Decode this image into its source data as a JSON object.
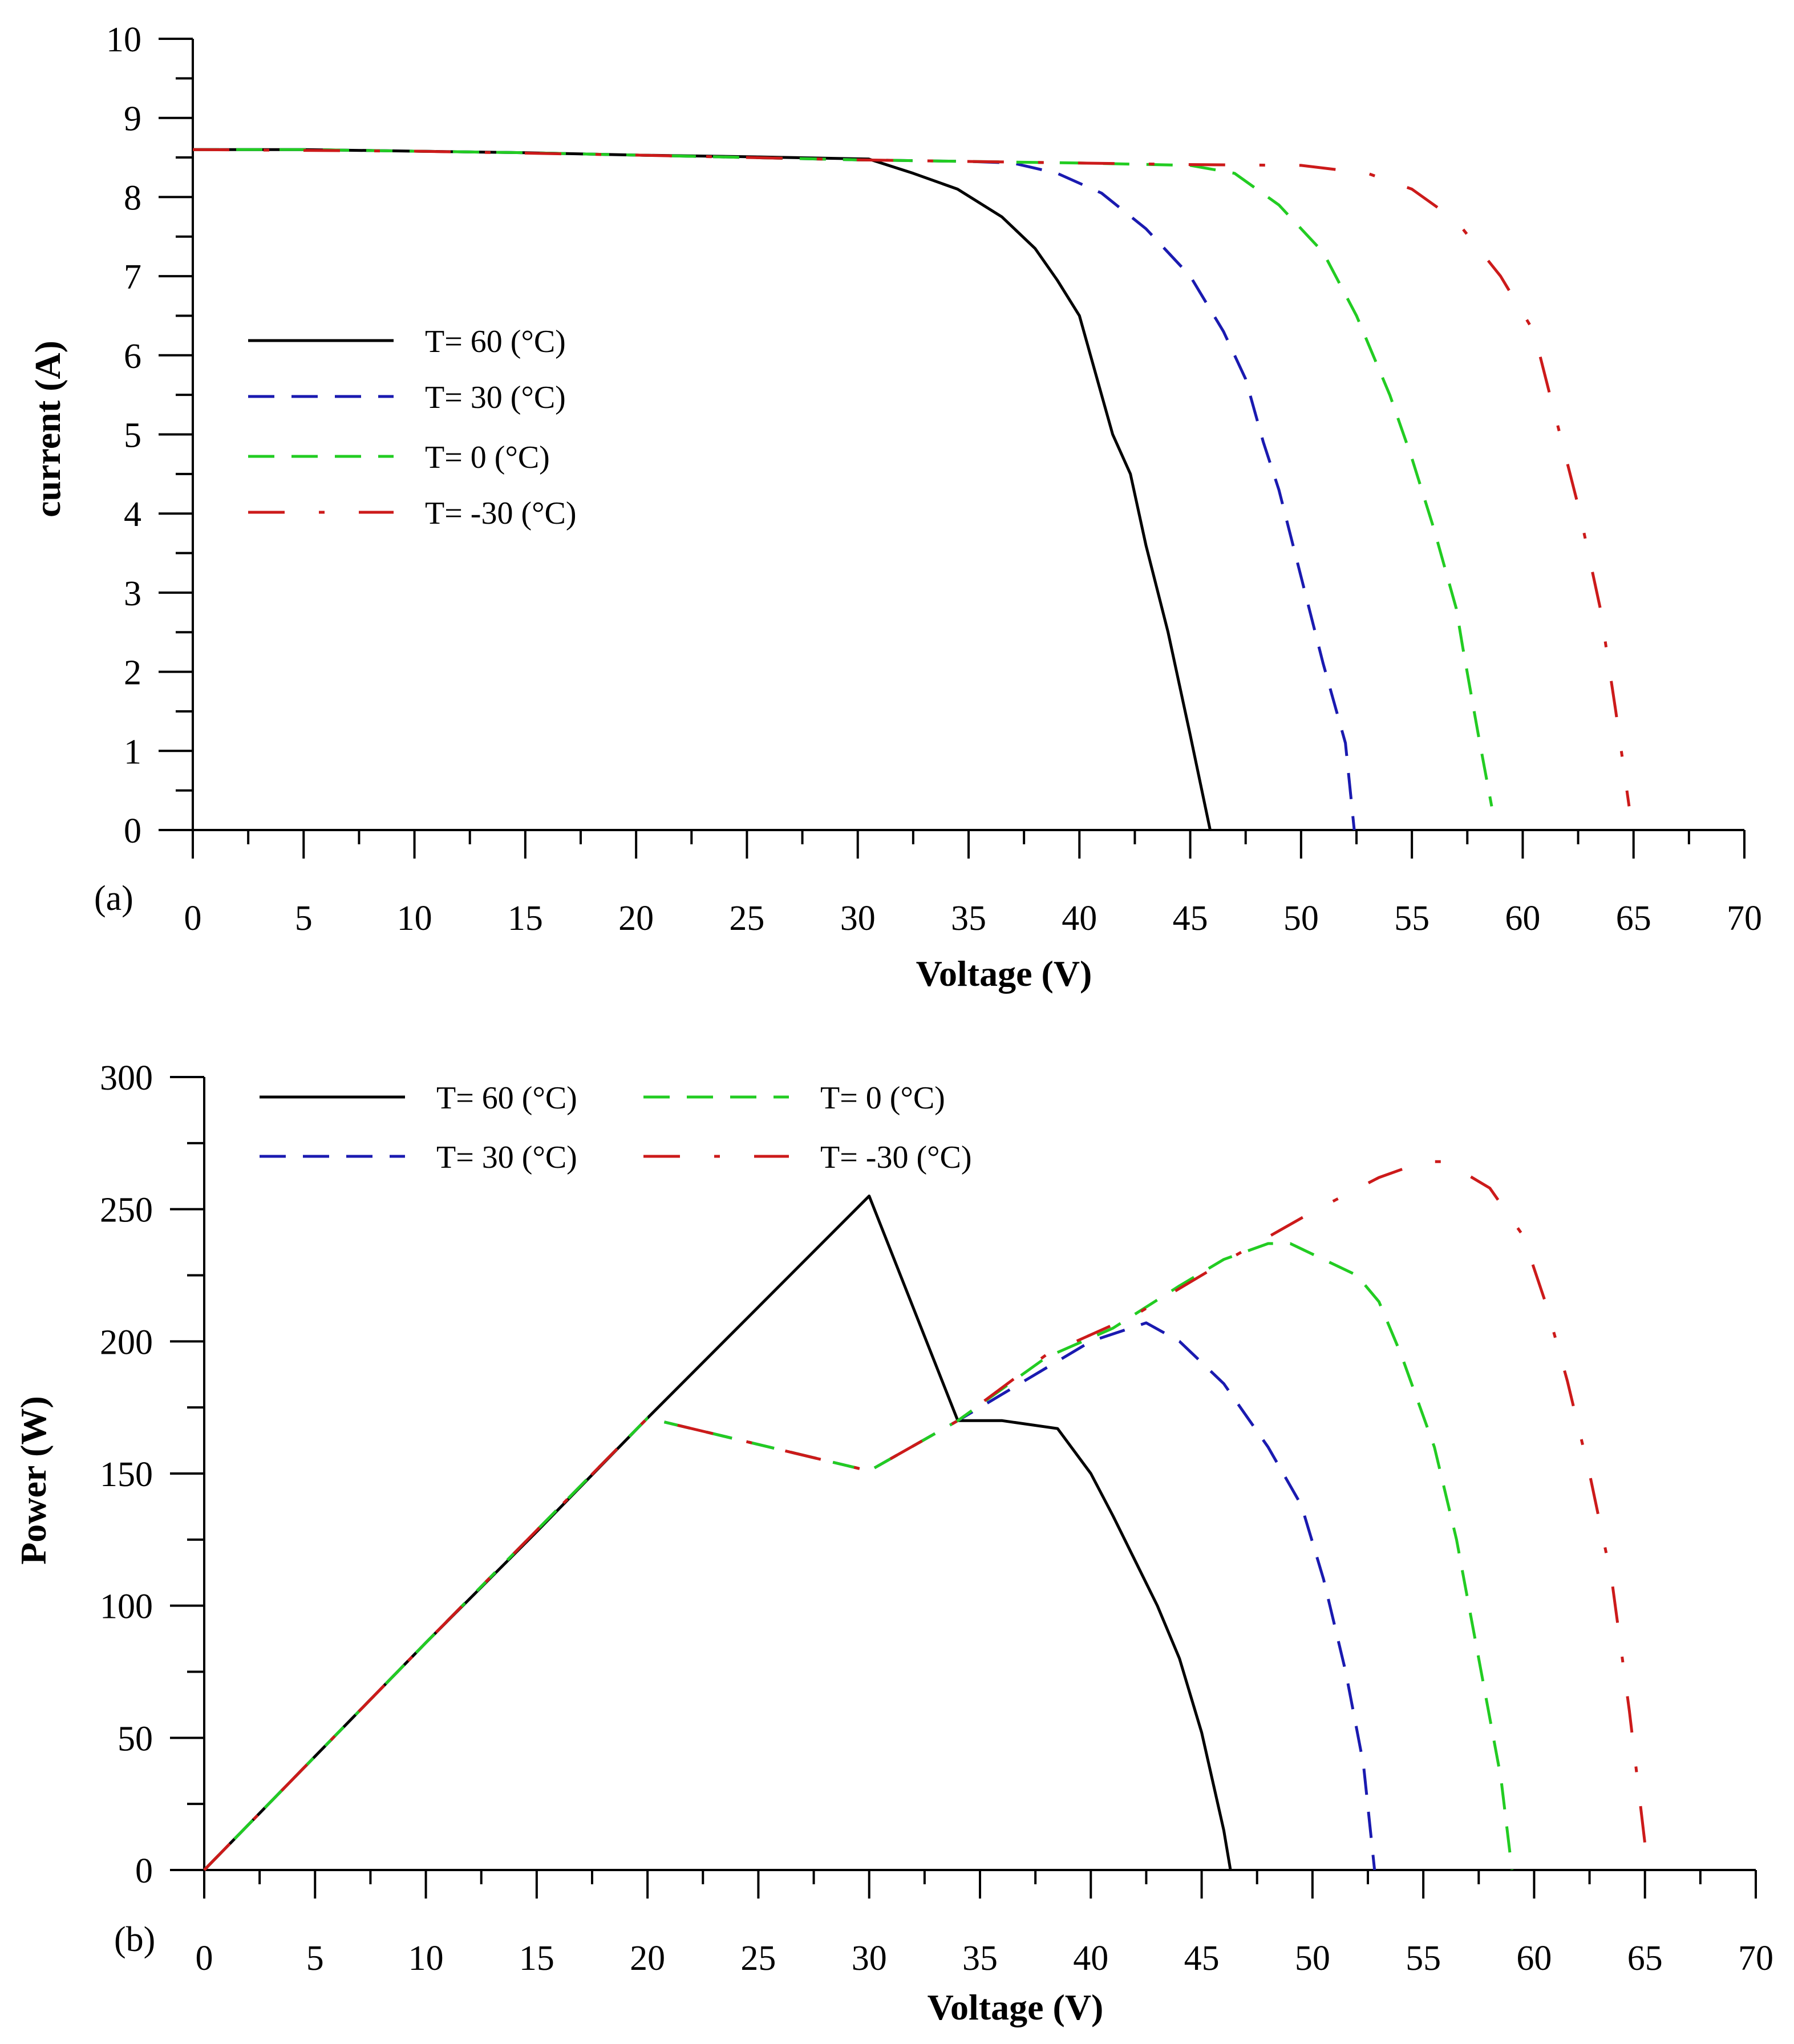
{
  "chart_data": [
    {
      "type": "line",
      "panel_label": "(a)",
      "xlabel": "Voltage (V)",
      "ylabel": "current (A)",
      "xlim": [
        0,
        70
      ],
      "ylim": [
        0,
        10
      ],
      "xticks": [
        0,
        5,
        10,
        15,
        20,
        25,
        30,
        35,
        40,
        45,
        50,
        55,
        60,
        65,
        70
      ],
      "yticks": [
        0,
        1,
        2,
        3,
        4,
        5,
        6,
        7,
        8,
        9,
        10
      ],
      "grid": false,
      "legend_position": "center-left",
      "series": [
        {
          "name": "T= 60 (°C)",
          "color": "#000000",
          "dash": "solid",
          "points": [
            [
              0,
              8.6
            ],
            [
              5,
              8.6
            ],
            [
              10,
              8.58
            ],
            [
              15,
              8.56
            ],
            [
              20,
              8.53
            ],
            [
              25,
              8.51
            ],
            [
              30.5,
              8.48
            ],
            [
              32.5,
              8.3
            ],
            [
              34.5,
              8.1
            ],
            [
              36.5,
              7.75
            ],
            [
              38,
              7.35
            ],
            [
              39,
              6.95
            ],
            [
              40,
              6.5
            ],
            [
              41,
              5.5
            ],
            [
              41.5,
              5.0
            ],
            [
              42.3,
              4.5
            ],
            [
              43,
              3.6
            ],
            [
              44,
              2.5
            ],
            [
              45,
              1.2
            ],
            [
              45.9,
              0
            ]
          ]
        },
        {
          "name": "T= 30 (°C)",
          "color": "#1a1ab0",
          "dash": "long-dash",
          "points": [
            [
              0,
              8.6
            ],
            [
              5,
              8.6
            ],
            [
              10,
              8.58
            ],
            [
              15,
              8.56
            ],
            [
              20,
              8.53
            ],
            [
              25,
              8.5
            ],
            [
              30,
              8.47
            ],
            [
              35,
              8.45
            ],
            [
              37,
              8.43
            ],
            [
              39,
              8.3
            ],
            [
              41,
              8.05
            ],
            [
              43,
              7.6
            ],
            [
              45,
              7.0
            ],
            [
              46.5,
              6.3
            ],
            [
              47.5,
              5.7
            ],
            [
              48.3,
              4.9
            ],
            [
              49,
              4.3
            ],
            [
              50,
              3.2
            ],
            [
              51,
              2.1
            ],
            [
              52,
              1.1
            ],
            [
              52.4,
              0
            ]
          ]
        },
        {
          "name": "T= 0 (°C)",
          "color": "#22cc22",
          "dash": "long-dash",
          "points": [
            [
              0,
              8.6
            ],
            [
              5,
              8.6
            ],
            [
              10,
              8.58
            ],
            [
              15,
              8.56
            ],
            [
              20,
              8.53
            ],
            [
              25,
              8.5
            ],
            [
              30,
              8.47
            ],
            [
              35,
              8.45
            ],
            [
              40,
              8.43
            ],
            [
              45,
              8.4
            ],
            [
              47,
              8.3
            ],
            [
              49,
              7.9
            ],
            [
              51,
              7.3
            ],
            [
              52.5,
              6.5
            ],
            [
              54,
              5.5
            ],
            [
              55,
              4.7
            ],
            [
              56,
              3.8
            ],
            [
              57,
              2.8
            ],
            [
              57.3,
              2.3
            ],
            [
              58,
              1.2
            ],
            [
              58.6,
              0.3
            ]
          ]
        },
        {
          "name": "T= -30 (°C)",
          "color": "#cc1a1a",
          "dash": "dash-dot",
          "points": [
            [
              0,
              8.6
            ],
            [
              10,
              8.58
            ],
            [
              20,
              8.53
            ],
            [
              30,
              8.47
            ],
            [
              40,
              8.43
            ],
            [
              45,
              8.41
            ],
            [
              50,
              8.4
            ],
            [
              53,
              8.3
            ],
            [
              55,
              8.1
            ],
            [
              57,
              7.7
            ],
            [
              59,
              7.0
            ],
            [
              60.5,
              6.3
            ],
            [
              61.5,
              5.2
            ],
            [
              62.5,
              4.1
            ],
            [
              63.5,
              2.8
            ],
            [
              64.2,
              1.5
            ],
            [
              64.8,
              0.3
            ]
          ]
        }
      ]
    },
    {
      "type": "line",
      "panel_label": "(b)",
      "xlabel": "Voltage (V)",
      "ylabel": "Power (W)",
      "xlim": [
        0,
        70
      ],
      "ylim": [
        0,
        300
      ],
      "xticks": [
        0,
        5,
        10,
        15,
        20,
        25,
        30,
        35,
        40,
        45,
        50,
        55,
        60,
        65,
        70
      ],
      "yticks": [
        0,
        50,
        100,
        150,
        200,
        250,
        300
      ],
      "grid": false,
      "legend_position": "top-left",
      "series": [
        {
          "name": "T= 60 (°C)",
          "color": "#000000",
          "dash": "solid",
          "points": [
            [
              0,
              0
            ],
            [
              5,
              43
            ],
            [
              10,
              86
            ],
            [
              15,
              128
            ],
            [
              20,
              171
            ],
            [
              25,
              213
            ],
            [
              30,
              255
            ],
            [
              34,
              170
            ],
            [
              36,
              170
            ],
            [
              38.5,
              167
            ],
            [
              40,
              150
            ],
            [
              41,
              134
            ],
            [
              42,
              117
            ],
            [
              43,
              100
            ],
            [
              44,
              80
            ],
            [
              45,
              52
            ],
            [
              46,
              15
            ],
            [
              46.3,
              0
            ]
          ]
        },
        {
          "name": "T= 30 (°C)",
          "color": "#1a1ab0",
          "dash": "long-dash",
          "points": [
            [
              0,
              0
            ],
            [
              10,
              86
            ],
            [
              20,
              171
            ],
            [
              30,
              151
            ],
            [
              34,
              170
            ],
            [
              37,
              185
            ],
            [
              40,
              200
            ],
            [
              42.5,
              207
            ],
            [
              44,
              200
            ],
            [
              46,
              184
            ],
            [
              48,
              160
            ],
            [
              49.5,
              138
            ],
            [
              50.5,
              110
            ],
            [
              51.5,
              75
            ],
            [
              52.3,
              40
            ],
            [
              52.8,
              0
            ]
          ]
        },
        {
          "name": "T= 0 (°C)",
          "color": "#22cc22",
          "dash": "long-dash",
          "points": [
            [
              0,
              0
            ],
            [
              10,
              86
            ],
            [
              20,
              171
            ],
            [
              30,
              151
            ],
            [
              34,
              170
            ],
            [
              38,
              194
            ],
            [
              41,
              205
            ],
            [
              44,
              221
            ],
            [
              46,
              231
            ],
            [
              48,
              237
            ],
            [
              49,
              237
            ],
            [
              52,
              225
            ],
            [
              53,
              215
            ],
            [
              54,
              195
            ],
            [
              55.5,
              160
            ],
            [
              56.5,
              125
            ],
            [
              57.5,
              80
            ],
            [
              58.5,
              35
            ],
            [
              59,
              0
            ]
          ]
        },
        {
          "name": "T= -30 (°C)",
          "color": "#cc1a1a",
          "dash": "dash-dot",
          "points": [
            [
              0,
              0
            ],
            [
              10,
              86
            ],
            [
              20,
              171
            ],
            [
              30,
              151
            ],
            [
              34,
              170
            ],
            [
              38,
              195
            ],
            [
              42,
              210
            ],
            [
              46,
              230
            ],
            [
              50,
              249
            ],
            [
              53,
              262
            ],
            [
              55,
              268
            ],
            [
              56,
              268
            ],
            [
              58,
              258
            ],
            [
              59.5,
              240
            ],
            [
              60.5,
              215
            ],
            [
              61.5,
              185
            ],
            [
              62.5,
              150
            ],
            [
              63.5,
              110
            ],
            [
              64.3,
              60
            ],
            [
              65,
              10
            ]
          ]
        }
      ]
    }
  ]
}
